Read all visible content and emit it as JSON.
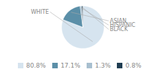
{
  "chart_data": {
    "type": "pie",
    "categories": [
      "WHITE",
      "ASIAN",
      "HISPANIC",
      "BLACK"
    ],
    "values": [
      80.8,
      17.1,
      1.3,
      0.8
    ],
    "value_labels": [
      "80.8%",
      "17.1%",
      "1.3%",
      "0.8%"
    ],
    "colors": [
      "#d6e4ef",
      "#5b8fa8",
      "#a8bfcf",
      "#1f3d52"
    ],
    "legend": "bottom"
  }
}
